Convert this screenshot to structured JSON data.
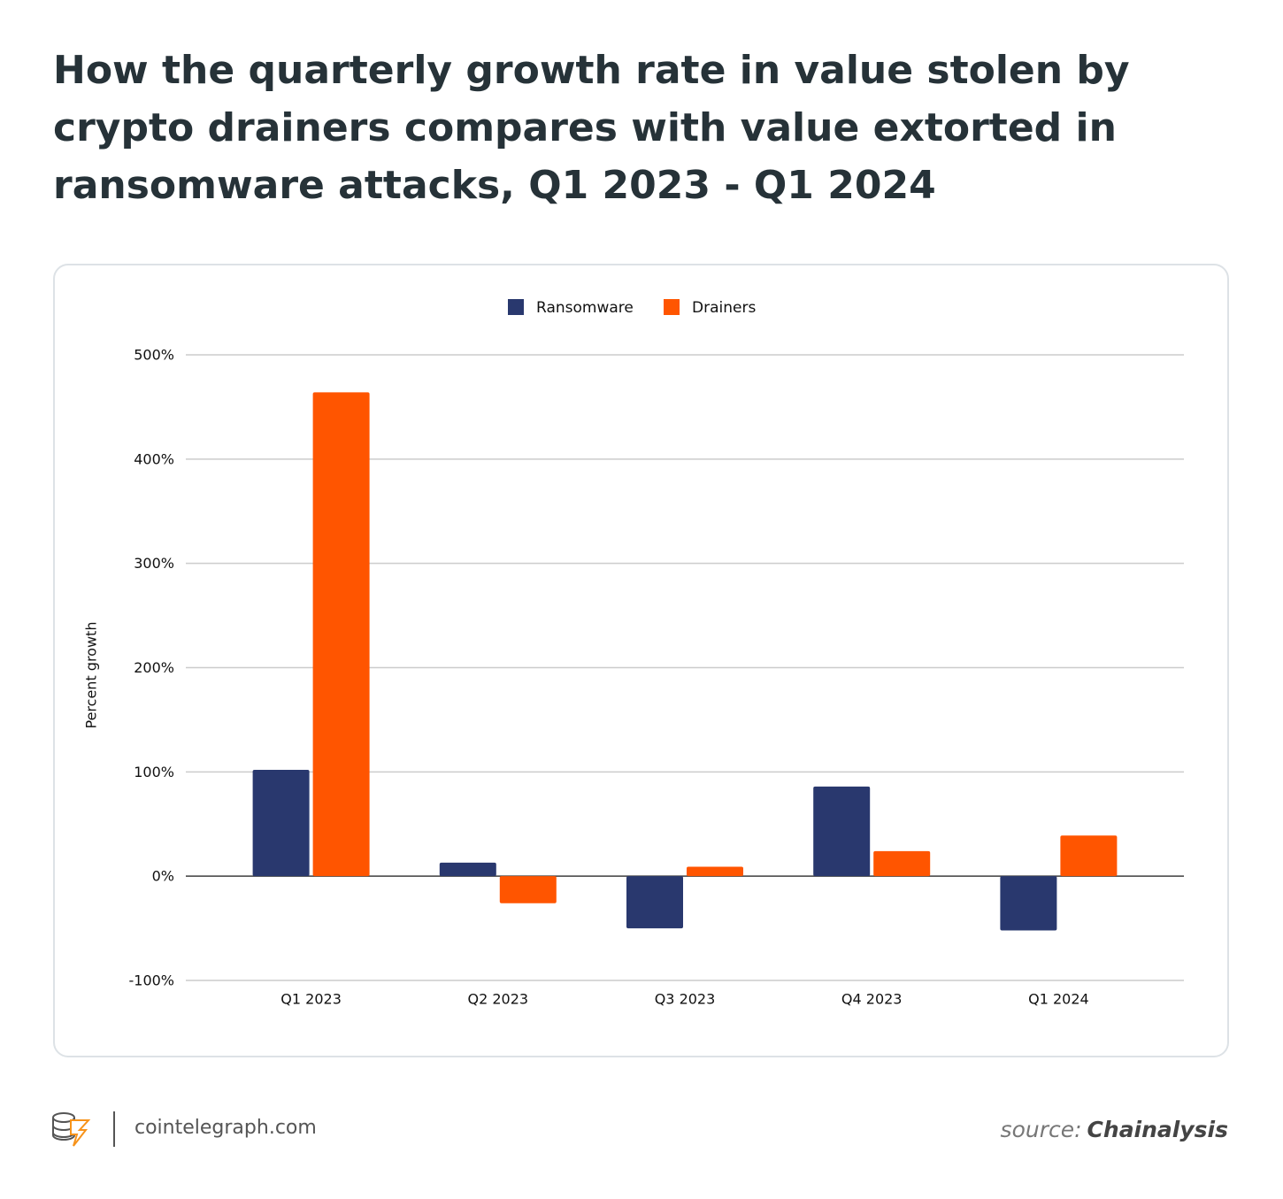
{
  "chart_data": {
    "type": "bar",
    "title": [
      "How the quarterly growth rate in value stolen by",
      "crypto drainers compares with value extorted in",
      "ransomware attacks, Q1 2023 - Q1 2024"
    ],
    "y_label": "Percent growth",
    "categories": [
      "Q1 2023",
      "Q2 2023",
      "Q3 2023",
      "Q4 2023",
      "Q1 2024"
    ],
    "series": [
      {
        "name": "Ransomware",
        "color": "#29386e",
        "values": [
          102,
          13,
          -50,
          86,
          -52
        ]
      },
      {
        "name": "Drainers",
        "color": "#ff5500",
        "values": [
          464,
          -26,
          9,
          24,
          39
        ]
      }
    ],
    "ylim": [
      -100,
      500
    ],
    "yticks": [
      {
        "value": -100,
        "label": "-100%"
      },
      {
        "value": 0,
        "label": "0%"
      },
      {
        "value": 100,
        "label": "100%"
      },
      {
        "value": 200,
        "label": "200%"
      },
      {
        "value": 300,
        "label": "300%"
      },
      {
        "value": 400,
        "label": "400%"
      },
      {
        "value": 500,
        "label": "500%"
      }
    ],
    "grid": true,
    "legend": "top"
  },
  "footer": {
    "brand": "cointelegraph.com",
    "source_label": "source:",
    "source": "Chainalysis"
  }
}
